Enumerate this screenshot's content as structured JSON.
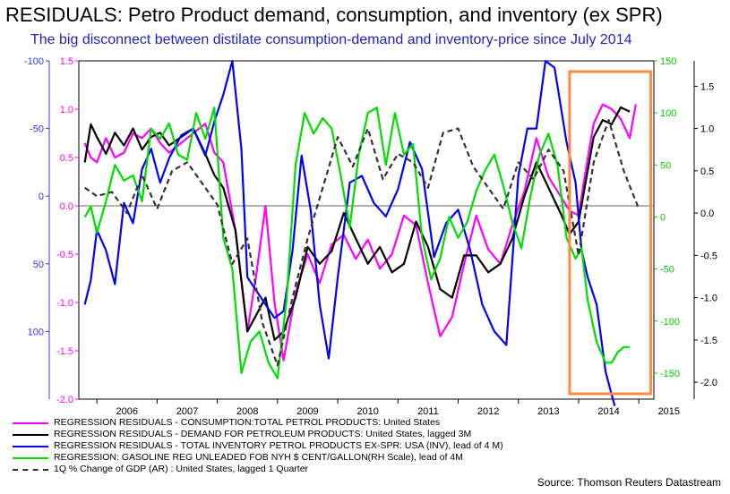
{
  "title": "RESIDUALS: Petro Product demand, consumption, and inventory (ex SPR)",
  "subtitle": "The big disconnect between distilate consumption-demand and inventory-price since July 2014",
  "source": "Source: Thomson Reuters Datastream",
  "chart_data": {
    "type": "line",
    "x_ticks": [
      "2006",
      "2007",
      "2008",
      "2009",
      "2010",
      "2011",
      "2012",
      "2013",
      "2014",
      "2015"
    ],
    "x_range": [
      2005.7,
      2015.25
    ],
    "axes": {
      "far_left_blue": {
        "range": [
          150,
          -100
        ],
        "ticks": [
          -100,
          -50,
          0,
          50,
          100
        ],
        "labels": [
          "-100",
          "-50",
          "0",
          "50",
          "100"
        ],
        "color": "#3333ff"
      },
      "left_magenta": {
        "range": [
          -2.0,
          1.5
        ],
        "ticks": [
          1.5,
          1.0,
          0.5,
          0.0,
          -0.5,
          -1.0,
          -1.5,
          -2.0
        ],
        "labels": [
          "1.5",
          "1.0",
          "0.5",
          "0.0",
          "-0.5",
          "-1.0",
          "-1.5",
          "-2.0"
        ],
        "color": "#ff00ff"
      },
      "right_green": {
        "range": [
          -175,
          150
        ],
        "ticks": [
          150,
          100,
          50,
          0,
          -50,
          -100,
          -150
        ],
        "labels": [
          "150",
          "100",
          "50",
          "0",
          "-50",
          "-100",
          "-150"
        ],
        "color": "#00cc00"
      },
      "far_right_black": {
        "range": [
          -2.2,
          1.8
        ],
        "ticks": [
          1.5,
          1.0,
          0.5,
          0.0,
          -0.5,
          -1.0,
          -1.5,
          -2.0
        ],
        "labels": [
          "1.5",
          "1.0",
          "0.5",
          "0.0",
          "-0.5",
          "-1.0",
          "-1.5",
          "-2.0"
        ],
        "color": "#000000"
      }
    },
    "series": [
      {
        "name": "REGRESSION RESIDUALS - CONSUMPTION:TOTAL PETROL PRODUCTS: United States",
        "color": "#ff00ff",
        "dash": "",
        "axis": "left_magenta",
        "x": [
          2005.8,
          2005.9,
          2006.0,
          2006.15,
          2006.3,
          2006.45,
          2006.6,
          2006.75,
          2006.9,
          2007.05,
          2007.2,
          2007.4,
          2007.6,
          2007.8,
          2007.95,
          2008.1,
          2008.3,
          2008.5,
          2008.65,
          2008.8,
          2008.95,
          2009.1,
          2009.3,
          2009.5,
          2009.7,
          2009.9,
          2010.1,
          2010.3,
          2010.5,
          2010.7,
          2010.9,
          2011.1,
          2011.3,
          2011.5,
          2011.7,
          2011.9,
          2012.1,
          2012.3,
          2012.5,
          2012.7,
          2012.9,
          2013.1,
          2013.3,
          2013.5,
          2013.7,
          2013.85,
          2014.0,
          2014.1,
          2014.25,
          2014.4,
          2014.55,
          2014.7,
          2014.85,
          2014.95
        ],
        "y": [
          0.65,
          0.5,
          0.45,
          0.7,
          0.5,
          0.55,
          0.75,
          0.7,
          0.8,
          0.65,
          0.55,
          0.65,
          0.75,
          0.85,
          0.55,
          0.45,
          -0.25,
          -1.3,
          -0.7,
          0.0,
          -1.0,
          -1.6,
          -0.9,
          -0.5,
          -0.8,
          -0.4,
          -0.3,
          -0.55,
          -0.35,
          -0.65,
          -0.5,
          -0.1,
          -0.2,
          -0.8,
          -1.35,
          -1.15,
          -0.6,
          -0.1,
          -0.45,
          -0.6,
          -0.2,
          0.15,
          0.7,
          0.3,
          0.1,
          -0.05,
          -0.1,
          0.3,
          0.85,
          1.05,
          1.0,
          0.9,
          0.7,
          1.05
        ]
      },
      {
        "name": "REGRESSION RESIDUALS - DEMAND FOR PETROLEUM PRODUCTS: United States, lagged 3M",
        "color": "#000000",
        "dash": "",
        "axis": "far_right_black",
        "x": [
          2005.8,
          2005.9,
          2006.0,
          2006.15,
          2006.3,
          2006.45,
          2006.6,
          2006.75,
          2006.9,
          2007.05,
          2007.2,
          2007.4,
          2007.6,
          2007.8,
          2007.95,
          2008.1,
          2008.3,
          2008.5,
          2008.65,
          2008.8,
          2008.95,
          2009.1,
          2009.3,
          2009.5,
          2009.7,
          2009.9,
          2010.1,
          2010.3,
          2010.5,
          2010.7,
          2010.9,
          2011.1,
          2011.3,
          2011.5,
          2011.7,
          2011.9,
          2012.1,
          2012.3,
          2012.5,
          2012.7,
          2012.9,
          2013.1,
          2013.3,
          2013.5,
          2013.7,
          2013.85,
          2014.0,
          2014.1,
          2014.25,
          2014.4,
          2014.55,
          2014.7,
          2014.85
        ],
        "y": [
          0.6,
          1.05,
          0.9,
          0.7,
          0.95,
          0.8,
          1.0,
          0.75,
          0.9,
          0.95,
          0.8,
          0.9,
          1.0,
          0.7,
          0.45,
          0.3,
          -0.2,
          -1.4,
          -1.2,
          -1.0,
          -1.5,
          -1.4,
          -1.0,
          -0.4,
          -0.6,
          -0.45,
          0.0,
          -0.3,
          -0.6,
          -0.4,
          -0.7,
          -0.6,
          -0.1,
          -0.4,
          -0.9,
          -1.0,
          -0.5,
          -0.5,
          -0.7,
          -0.6,
          -0.3,
          0.2,
          0.6,
          0.3,
          0.0,
          -0.25,
          -0.1,
          0.3,
          0.9,
          1.1,
          1.05,
          1.25,
          1.2
        ]
      },
      {
        "name": "REGRESSION RESIDUALS - TOTAL INVENTORY PETROL PRODUCTS EX-SPR: USA  (INV), lead of 4 M)",
        "color": "#0000ff",
        "dash": "",
        "axis": "far_left_blue",
        "x": [
          2005.8,
          2005.9,
          2006.0,
          2006.15,
          2006.3,
          2006.45,
          2006.6,
          2006.75,
          2006.9,
          2007.05,
          2007.2,
          2007.4,
          2007.6,
          2007.8,
          2007.95,
          2008.1,
          2008.25,
          2008.4,
          2008.5,
          2008.65,
          2008.8,
          2008.95,
          2009.1,
          2009.25,
          2009.4,
          2009.55,
          2009.7,
          2009.85,
          2010.0,
          2010.2,
          2010.4,
          2010.6,
          2010.8,
          2011.0,
          2011.2,
          2011.4,
          2011.6,
          2011.8,
          2012.0,
          2012.2,
          2012.4,
          2012.6,
          2012.8,
          2013.0,
          2013.15,
          2013.3,
          2013.45,
          2013.6,
          2013.8,
          2013.95,
          2014.05,
          2014.15,
          2014.3,
          2014.45,
          2014.6
        ],
        "y": [
          80,
          62,
          25,
          40,
          65,
          5,
          20,
          -20,
          -35,
          -10,
          -28,
          -45,
          -50,
          -30,
          -55,
          -75,
          -100,
          -35,
          60,
          70,
          80,
          90,
          85,
          40,
          -30,
          10,
          80,
          120,
          60,
          -10,
          -15,
          5,
          15,
          -5,
          -40,
          -20,
          45,
          20,
          10,
          40,
          80,
          100,
          110,
          -15,
          -50,
          -50,
          -100,
          -95,
          -40,
          -10,
          40,
          60,
          80,
          130,
          155
        ]
      },
      {
        "name": "REGRESSION:  GASOLINE REG UNLEADED FOB NYH $ CENT/GALLON(RH Scale), lead of 4M",
        "color": "#00dd00",
        "dash": "",
        "axis": "right_green",
        "x": [
          2005.8,
          2005.9,
          2006.0,
          2006.15,
          2006.3,
          2006.45,
          2006.6,
          2006.75,
          2006.9,
          2007.05,
          2007.2,
          2007.35,
          2007.5,
          2007.65,
          2007.8,
          2007.95,
          2008.1,
          2008.25,
          2008.4,
          2008.55,
          2008.7,
          2008.85,
          2009.0,
          2009.15,
          2009.3,
          2009.45,
          2009.6,
          2009.75,
          2009.9,
          2010.05,
          2010.2,
          2010.35,
          2010.5,
          2010.65,
          2010.8,
          2010.95,
          2011.1,
          2011.25,
          2011.4,
          2011.55,
          2011.7,
          2011.85,
          2012.0,
          2012.15,
          2012.3,
          2012.45,
          2012.6,
          2012.75,
          2012.9,
          2013.05,
          2013.2,
          2013.35,
          2013.5,
          2013.65,
          2013.8,
          2013.95,
          2014.05,
          2014.15,
          2014.3,
          2014.45,
          2014.55,
          2014.65,
          2014.75,
          2014.85
        ],
        "y": [
          0,
          10,
          -15,
          15,
          50,
          35,
          40,
          15,
          85,
          75,
          90,
          60,
          55,
          100,
          75,
          105,
          -20,
          -50,
          -150,
          -120,
          -110,
          -140,
          -155,
          -80,
          50,
          100,
          80,
          95,
          85,
          40,
          -10,
          60,
          100,
          105,
          50,
          100,
          60,
          70,
          -20,
          -60,
          -40,
          0,
          -20,
          -5,
          25,
          45,
          60,
          30,
          -5,
          -30,
          20,
          60,
          80,
          50,
          -20,
          -40,
          -30,
          -80,
          -120,
          -140,
          -140,
          -130,
          -125,
          -125
        ]
      },
      {
        "name": "1Q % Change of GDP (AR) : United States, lagged 1 Quarter",
        "color": "#333333",
        "dash": "6,4",
        "axis": "far_right_black",
        "x": [
          2005.8,
          2006.0,
          2006.25,
          2006.5,
          2006.75,
          2007.0,
          2007.25,
          2007.5,
          2007.75,
          2008.0,
          2008.25,
          2008.5,
          2008.75,
          2009.0,
          2009.25,
          2009.5,
          2009.75,
          2010.0,
          2010.25,
          2010.5,
          2010.75,
          2011.0,
          2011.25,
          2011.5,
          2011.75,
          2012.0,
          2012.25,
          2012.5,
          2012.75,
          2013.0,
          2013.25,
          2013.5,
          2013.75,
          2014.0,
          2014.25,
          2014.5,
          2014.75,
          2015.0
        ],
        "y": [
          0.3,
          0.2,
          0.25,
          0.0,
          0.45,
          0.05,
          0.5,
          0.6,
          0.35,
          0.1,
          -0.6,
          -0.3,
          -1.3,
          -1.8,
          -1.0,
          -0.3,
          0.3,
          0.9,
          0.55,
          1.0,
          0.4,
          0.7,
          0.6,
          0.3,
          0.95,
          1.0,
          0.55,
          0.3,
          0.05,
          0.6,
          0.4,
          0.75,
          0.5,
          -0.5,
          0.6,
          1.1,
          0.5,
          0.05
        ]
      }
    ],
    "highlight_box": {
      "x_range": [
        2013.85,
        2015.2
      ],
      "color": "#ff8844"
    }
  }
}
